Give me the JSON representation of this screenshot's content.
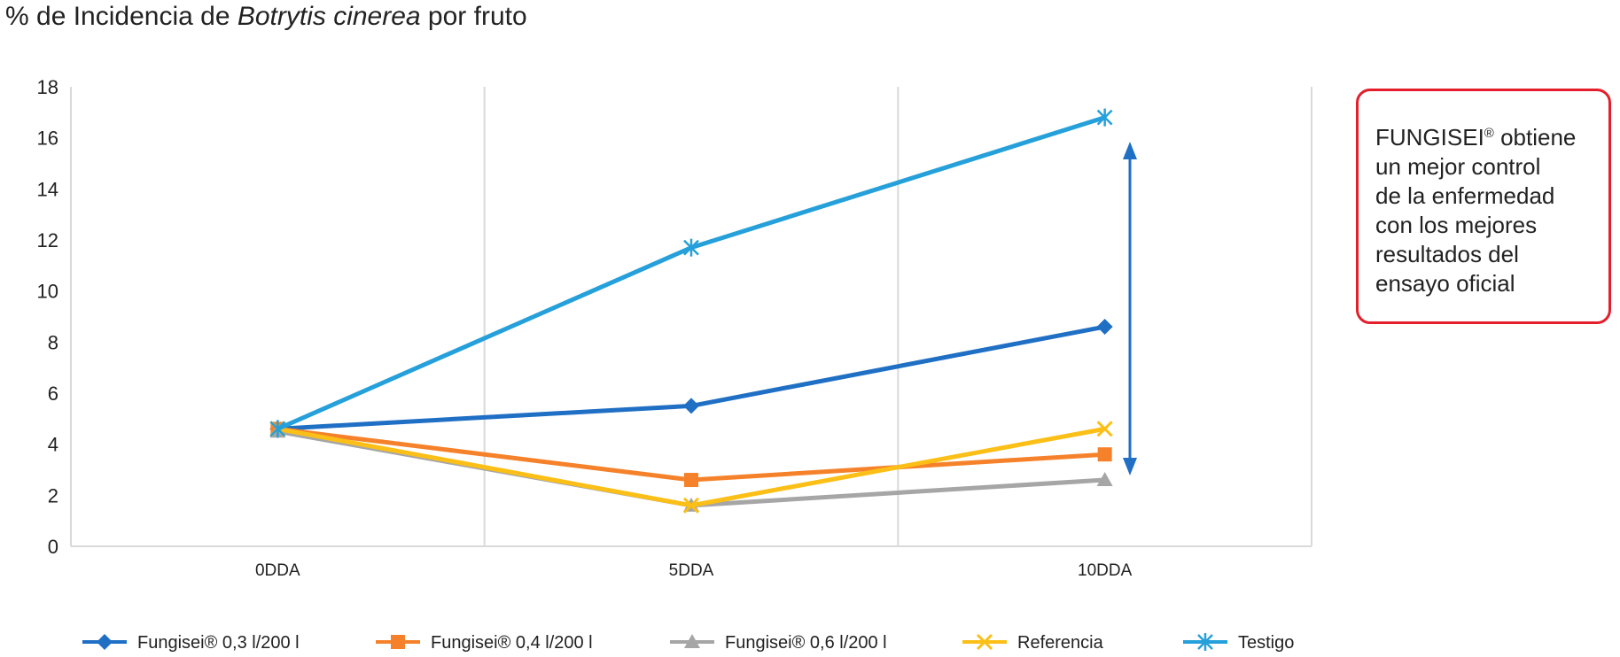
{
  "title": {
    "prefix": "% de Incidencia de ",
    "species": "Botrytis cinerea",
    "suffix": " por fruto"
  },
  "callout": {
    "brand": "FUNGISEI",
    "mark": "®",
    "text_lines": [
      "obtiene",
      "un mejor control",
      "de la enfermedad",
      "con los mejores",
      "resultados del",
      "ensayo oficial"
    ]
  },
  "colors": {
    "callout_border": "#e41e2b",
    "arrow": "#1f6fc5",
    "grid": "#d9d9d9"
  },
  "chart_data": {
    "type": "line",
    "categories": [
      "0DDA",
      "5DDA",
      "10DDA"
    ],
    "ylim": [
      0,
      18
    ],
    "yticks": [
      0,
      2,
      4,
      6,
      8,
      10,
      12,
      14,
      16,
      18
    ],
    "grid": "vertical",
    "legend_position": "bottom",
    "title": "% de Incidencia de Botrytis cinerea por fruto",
    "xlabel": "",
    "ylabel": "",
    "series": [
      {
        "name": "Fungisei® 0,3 l/200 l",
        "values": [
          4.6,
          5.5,
          8.6
        ],
        "color": "#1f6fc5",
        "marker": "diamond"
      },
      {
        "name": "Fungisei® 0,4 l/200 l",
        "values": [
          4.6,
          2.6,
          3.6
        ],
        "color": "#f5822a",
        "marker": "square"
      },
      {
        "name": "Fungisei® 0,6 l/200 l",
        "values": [
          4.5,
          1.6,
          2.6
        ],
        "color": "#a6a6a6",
        "marker": "triangle"
      },
      {
        "name": "Referencia",
        "values": [
          4.6,
          1.6,
          4.6
        ],
        "color": "#fbbf17",
        "marker": "x"
      },
      {
        "name": "Testigo",
        "values": [
          4.6,
          11.7,
          16.8
        ],
        "color": "#25a0da",
        "marker": "star"
      }
    ]
  }
}
